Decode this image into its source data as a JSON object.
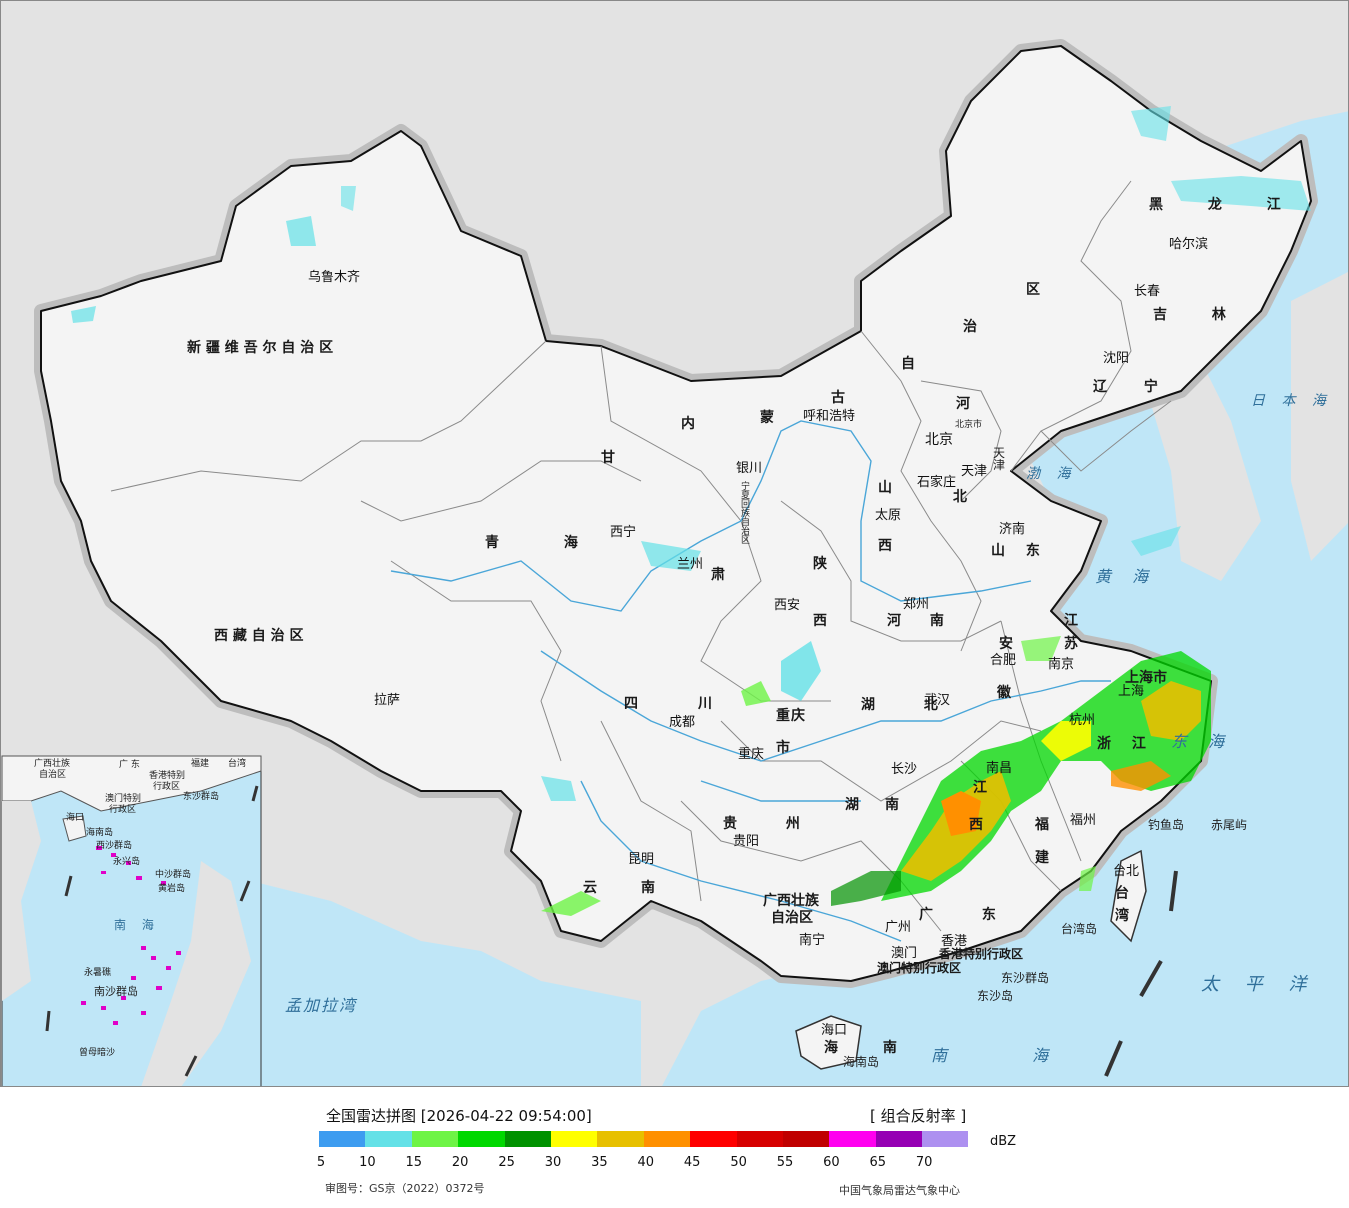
{
  "map": {
    "provinces": [
      {
        "name": "新 疆 维 吾 尔 自 治 区"
      },
      {
        "name": "西 藏 自 治 区"
      },
      {
        "name": "青 海"
      },
      {
        "name": "甘"
      },
      {
        "name": "肃"
      },
      {
        "name": "内"
      },
      {
        "name": "蒙"
      },
      {
        "name": "古"
      },
      {
        "name": "自"
      },
      {
        "name": "治"
      },
      {
        "name": "区"
      },
      {
        "name": "黑 龙 江"
      },
      {
        "name": "吉 林"
      },
      {
        "name": "辽 宁"
      },
      {
        "name": "河"
      },
      {
        "name": "北"
      },
      {
        "name": "山"
      },
      {
        "name": "西"
      },
      {
        "name": "山 东"
      },
      {
        "name": "陕"
      },
      {
        "name": "西"
      },
      {
        "name": "河 南"
      },
      {
        "name": "江"
      },
      {
        "name": "苏"
      },
      {
        "name": "安"
      },
      {
        "name": "徽"
      },
      {
        "name": "四"
      },
      {
        "name": "川"
      },
      {
        "name": "重"
      },
      {
        "name": "庆"
      },
      {
        "name": "市"
      },
      {
        "name": "湖 北"
      },
      {
        "name": "湖"
      },
      {
        "name": "南"
      },
      {
        "name": "江"
      },
      {
        "name": "西"
      },
      {
        "name": "浙 江"
      },
      {
        "name": "福"
      },
      {
        "name": "建"
      },
      {
        "name": "贵 州"
      },
      {
        "name": "云"
      },
      {
        "name": "南"
      },
      {
        "name": "广西壮族"
      },
      {
        "name": "自治区"
      },
      {
        "name": "广 东"
      },
      {
        "name": "海 南"
      },
      {
        "name": "台 湾"
      },
      {
        "name": "上海市"
      },
      {
        "name": "天津"
      },
      {
        "name": "北京市"
      },
      {
        "name": "宁夏回族自治区"
      },
      {
        "name": "香港特别行政区"
      },
      {
        "name": "澳门特别行政区"
      }
    ],
    "cities": [
      {
        "name": "乌鲁木齐"
      },
      {
        "name": "拉萨"
      },
      {
        "name": "西宁"
      },
      {
        "name": "兰州"
      },
      {
        "name": "银川"
      },
      {
        "name": "呼和浩特"
      },
      {
        "name": "哈尔滨"
      },
      {
        "name": "长春"
      },
      {
        "name": "沈阳"
      },
      {
        "name": "北京"
      },
      {
        "name": "天津"
      },
      {
        "name": "石家庄"
      },
      {
        "name": "太原"
      },
      {
        "name": "济南"
      },
      {
        "name": "西安"
      },
      {
        "name": "郑州"
      },
      {
        "name": "合肥"
      },
      {
        "name": "南京"
      },
      {
        "name": "上海"
      },
      {
        "name": "杭州"
      },
      {
        "name": "武汉"
      },
      {
        "name": "成都"
      },
      {
        "name": "重庆"
      },
      {
        "name": "长沙"
      },
      {
        "name": "南昌"
      },
      {
        "name": "福州"
      },
      {
        "name": "贵阳"
      },
      {
        "name": "昆明"
      },
      {
        "name": "南宁"
      },
      {
        "name": "广州"
      },
      {
        "name": "澳门"
      },
      {
        "name": "香港"
      },
      {
        "name": "台北"
      },
      {
        "name": "海口"
      }
    ],
    "seas": [
      {
        "name": "日 本 海"
      },
      {
        "name": "渤 海"
      },
      {
        "name": "黄 海"
      },
      {
        "name": "东 海"
      },
      {
        "name": "太 平 洋"
      },
      {
        "name": "南 海"
      },
      {
        "name": "孟加拉湾"
      }
    ],
    "islands": [
      {
        "name": "钓鱼岛"
      },
      {
        "name": "赤尾屿"
      },
      {
        "name": "台湾岛"
      },
      {
        "name": "东沙群岛"
      },
      {
        "name": "东沙岛"
      },
      {
        "name": "海南岛"
      }
    ],
    "inset": {
      "labels": [
        {
          "name": "广西壮族"
        },
        {
          "name": "自治区"
        },
        {
          "name": "广 东"
        },
        {
          "name": "福建"
        },
        {
          "name": "台湾"
        },
        {
          "name": "澳门特别"
        },
        {
          "name": "行政区"
        },
        {
          "name": "香港特别"
        },
        {
          "name": "行政区"
        },
        {
          "name": "东沙群岛"
        },
        {
          "name": "海口"
        },
        {
          "name": "海南岛"
        },
        {
          "name": "西沙群岛"
        },
        {
          "name": "永兴岛"
        },
        {
          "name": "中沙群岛"
        },
        {
          "name": "黄岩岛"
        },
        {
          "name": "南 海"
        },
        {
          "name": "南沙群岛"
        },
        {
          "name": "永暑礁"
        },
        {
          "name": "曾母暗沙"
        }
      ]
    }
  },
  "legend": {
    "title": "全国雷达拼图 [2026-04-22 09:54:00]",
    "product": "[ 组合反射率 ]",
    "unit": "dBZ",
    "ticks": [
      "5",
      "10",
      "15",
      "20",
      "25",
      "30",
      "35",
      "40",
      "45",
      "50",
      "55",
      "60",
      "65",
      "70"
    ],
    "colors": [
      "#3d9cf0",
      "#64e1e7",
      "#6ef446",
      "#00d800",
      "#009100",
      "#ffff00",
      "#e7c000",
      "#ff9000",
      "#ff0000",
      "#d60000",
      "#c00000",
      "#ff00f0",
      "#9600b4",
      "#ad90f0"
    ],
    "approval": "审图号：GS京（2022）0372号",
    "organization": "中国气象局雷达气象中心"
  }
}
